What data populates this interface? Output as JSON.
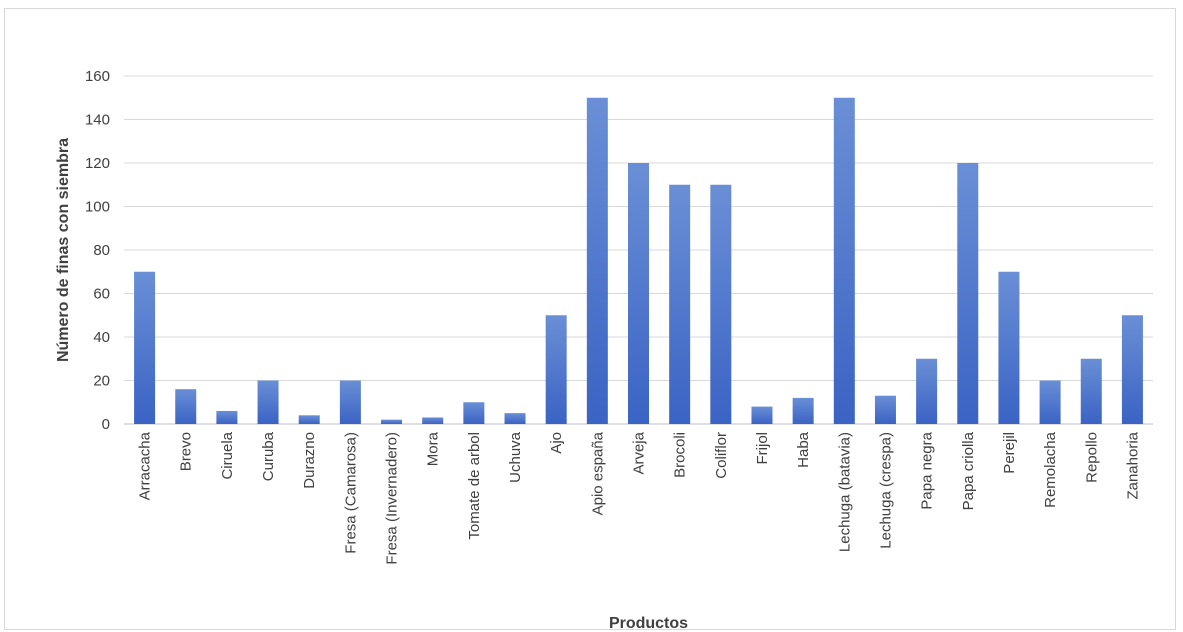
{
  "chart_data": {
    "type": "bar",
    "title": "",
    "xlabel": "Productos",
    "ylabel": "Número de finas con siembra",
    "ylim": [
      0,
      160
    ],
    "ytick_step": 20,
    "grid": true,
    "legend": "none",
    "bar_color_top": "#6a8fd6",
    "bar_color_bottom": "#3a63c4",
    "categories": [
      "Arracacha",
      "Brevo",
      "Ciruela",
      "Curuba",
      "Durazno",
      "Fresa (Camarosa)",
      "Fresa (Invernadero)",
      "Mora",
      "Tomate de arbol",
      "Uchuva",
      "Ajo",
      "Apio españa",
      "Arveja",
      "Brocoli",
      "Coliflor",
      "Frijol",
      "Haba",
      "Lechuga (batavia)",
      "Lechuga (crespa)",
      "Papa negra",
      "Papa criolla",
      "Perejil",
      "Remolacha",
      "Repollo",
      "Zanahoria"
    ],
    "values": [
      70,
      16,
      6,
      20,
      4,
      20,
      2,
      3,
      10,
      5,
      50,
      150,
      120,
      110,
      110,
      8,
      12,
      150,
      13,
      30,
      120,
      70,
      20,
      30,
      50
    ]
  }
}
